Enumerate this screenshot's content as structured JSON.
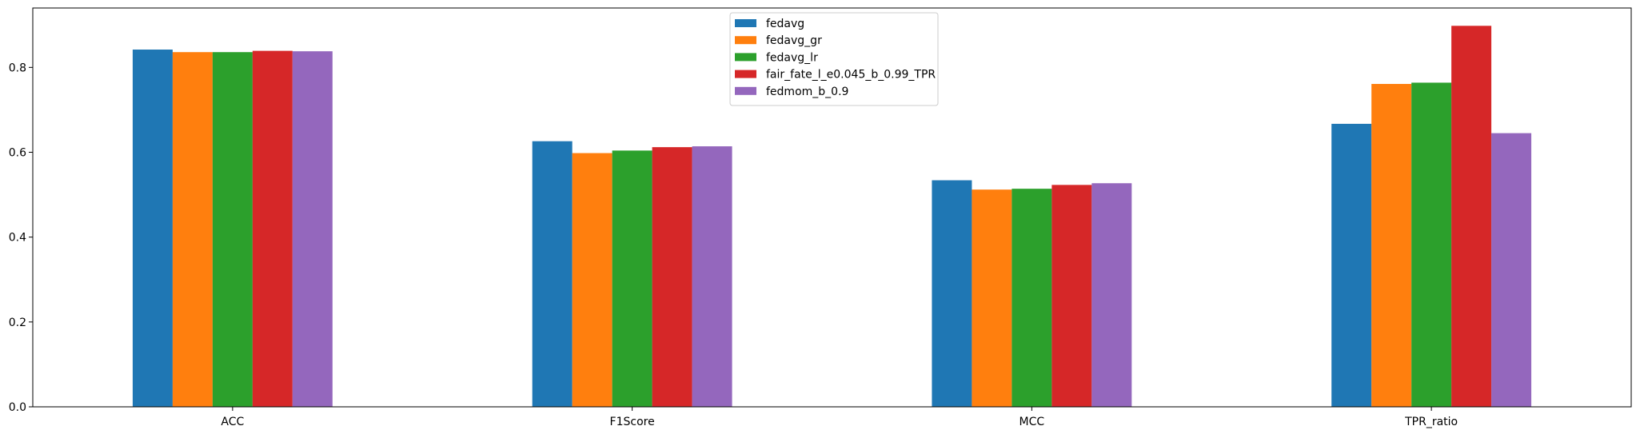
{
  "chart_data": {
    "type": "bar",
    "categories": [
      "ACC",
      "F1Score",
      "MCC",
      "TPR_ratio"
    ],
    "series": [
      {
        "name": "fedavg",
        "color": "#1f77b4",
        "values": [
          0.842,
          0.626,
          0.534,
          0.667
        ]
      },
      {
        "name": "fedavg_gr",
        "color": "#ff7f0e",
        "values": [
          0.836,
          0.598,
          0.512,
          0.761
        ]
      },
      {
        "name": "fedavg_lr",
        "color": "#2ca02c",
        "values": [
          0.836,
          0.604,
          0.514,
          0.764
        ]
      },
      {
        "name": "fair_fate_l_e0.045_b_0.99_TPR",
        "color": "#d62728",
        "values": [
          0.839,
          0.612,
          0.523,
          0.898
        ]
      },
      {
        "name": "fedmom_b_0.9",
        "color": "#9467bd",
        "values": [
          0.838,
          0.614,
          0.527,
          0.645
        ]
      }
    ],
    "yticks": [
      "0.0",
      "0.2",
      "0.4",
      "0.6",
      "0.8"
    ],
    "ylim": [
      0,
      0.94
    ],
    "grid": false,
    "legend_position": "upper-center"
  }
}
